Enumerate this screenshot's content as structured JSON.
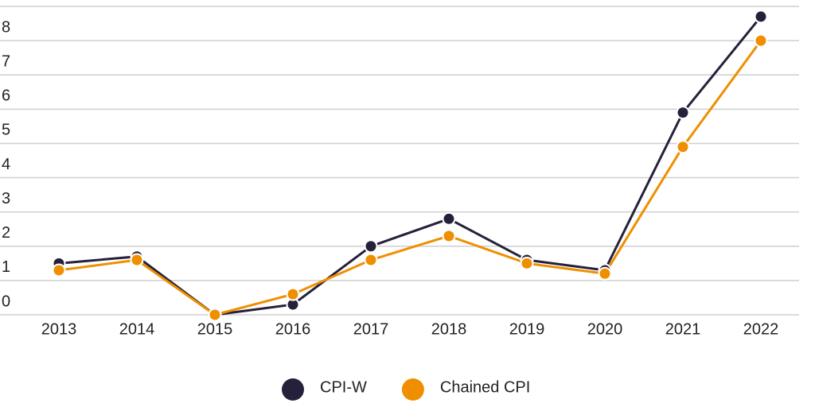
{
  "chart_data": {
    "type": "line",
    "categories": [
      "2013",
      "2014",
      "2015",
      "2016",
      "2017",
      "2018",
      "2019",
      "2020",
      "2021",
      "2022"
    ],
    "series": [
      {
        "name": "CPI-W",
        "color": "#25213b",
        "values": [
          1.5,
          1.7,
          0,
          0.3,
          2.0,
          2.8,
          1.6,
          1.3,
          5.9,
          8.7
        ]
      },
      {
        "name": "Chained CPI",
        "color": "#ef8f00",
        "values": [
          1.3,
          1.6,
          0,
          0.6,
          1.6,
          2.3,
          1.5,
          1.2,
          4.9,
          8.0
        ]
      }
    ],
    "ylim": [
      0,
      9
    ],
    "yticks": [
      0,
      1,
      2,
      3,
      4,
      5,
      6,
      7,
      8
    ],
    "grid": true
  }
}
